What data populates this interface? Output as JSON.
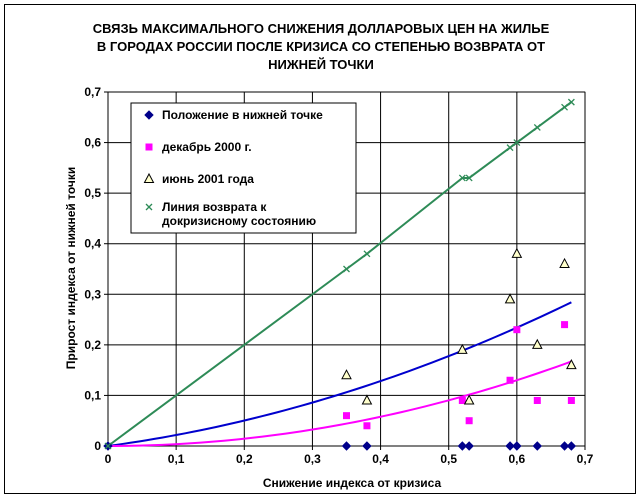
{
  "chart_data": {
    "type": "scatter",
    "title_lines": [
      "СВЯЗЬ МАКСИМАЛЬНОГО СНИЖЕНИЯ ДОЛЛАРОВЫХ ЦЕН НА ЖИЛЬЕ",
      "В ГОРОДАХ РОССИИ ПОСЛЕ КРИЗИСА СО СТЕПЕНЬЮ ВОЗВРАТА ОТ",
      "НИЖНЕЙ ТОЧКИ"
    ],
    "xlabel": "Снижение индекса от кризиса",
    "ylabel": "Прирост индекса от нижней точки",
    "xlim": [
      0,
      0.7
    ],
    "ylim": [
      0,
      0.7
    ],
    "xticks": [
      "0",
      "0,1",
      "0,2",
      "0,3",
      "0,4",
      "0,5",
      "0,6",
      "0,7"
    ],
    "yticks": [
      "0",
      "0,1",
      "0,2",
      "0,3",
      "0,4",
      "0,5",
      "0,6",
      "0,7"
    ],
    "grid": true,
    "legend_position": "top-left",
    "series": [
      {
        "name": "Положение в нижней точке",
        "marker": "diamond",
        "color": "#00008B",
        "points": [
          [
            0,
            0
          ],
          [
            0.35,
            0
          ],
          [
            0.38,
            0
          ],
          [
            0.52,
            0
          ],
          [
            0.53,
            0
          ],
          [
            0.59,
            0
          ],
          [
            0.6,
            0
          ],
          [
            0.63,
            0
          ],
          [
            0.67,
            0
          ],
          [
            0.68,
            0
          ]
        ]
      },
      {
        "name": "декабрь 2000 г.",
        "marker": "square",
        "color": "#FF00FF",
        "points": [
          [
            0.35,
            0.06
          ],
          [
            0.38,
            0.04
          ],
          [
            0.52,
            0.09
          ],
          [
            0.53,
            0.05
          ],
          [
            0.59,
            0.13
          ],
          [
            0.6,
            0.23
          ],
          [
            0.63,
            0.09
          ],
          [
            0.67,
            0.24
          ],
          [
            0.68,
            0.09
          ]
        ]
      },
      {
        "name": "июнь 2001 года",
        "marker": "triangle",
        "color": "#000000",
        "points": [
          [
            0.35,
            0.14
          ],
          [
            0.38,
            0.09
          ],
          [
            0.52,
            0.19
          ],
          [
            0.53,
            0.09
          ],
          [
            0.59,
            0.29
          ],
          [
            0.6,
            0.38
          ],
          [
            0.63,
            0.2
          ],
          [
            0.67,
            0.36
          ],
          [
            0.68,
            0.16
          ]
        ]
      },
      {
        "name": "Линия возврата к докризисному состоянию",
        "legend_lines": [
          "Линия возврата к",
          "докризисному состоянию"
        ],
        "marker": "x",
        "color": "#2E8B57",
        "points": [
          [
            0,
            0
          ],
          [
            0.35,
            0.35
          ],
          [
            0.38,
            0.38
          ],
          [
            0.52,
            0.53
          ],
          [
            0.53,
            0.53
          ],
          [
            0.59,
            0.59
          ],
          [
            0.6,
            0.6
          ],
          [
            0.63,
            0.63
          ],
          [
            0.67,
            0.67
          ],
          [
            0.68,
            0.68
          ]
        ]
      }
    ],
    "trendlines": [
      {
        "series": "июнь 2001 года",
        "color": "#0000CD",
        "coef": [
          0.1824,
          0.3463
        ]
      },
      {
        "series": "декабрь 2000 г.",
        "color": "#FF00FF",
        "coef": [
          0.0,
          0.3614
        ]
      }
    ]
  }
}
